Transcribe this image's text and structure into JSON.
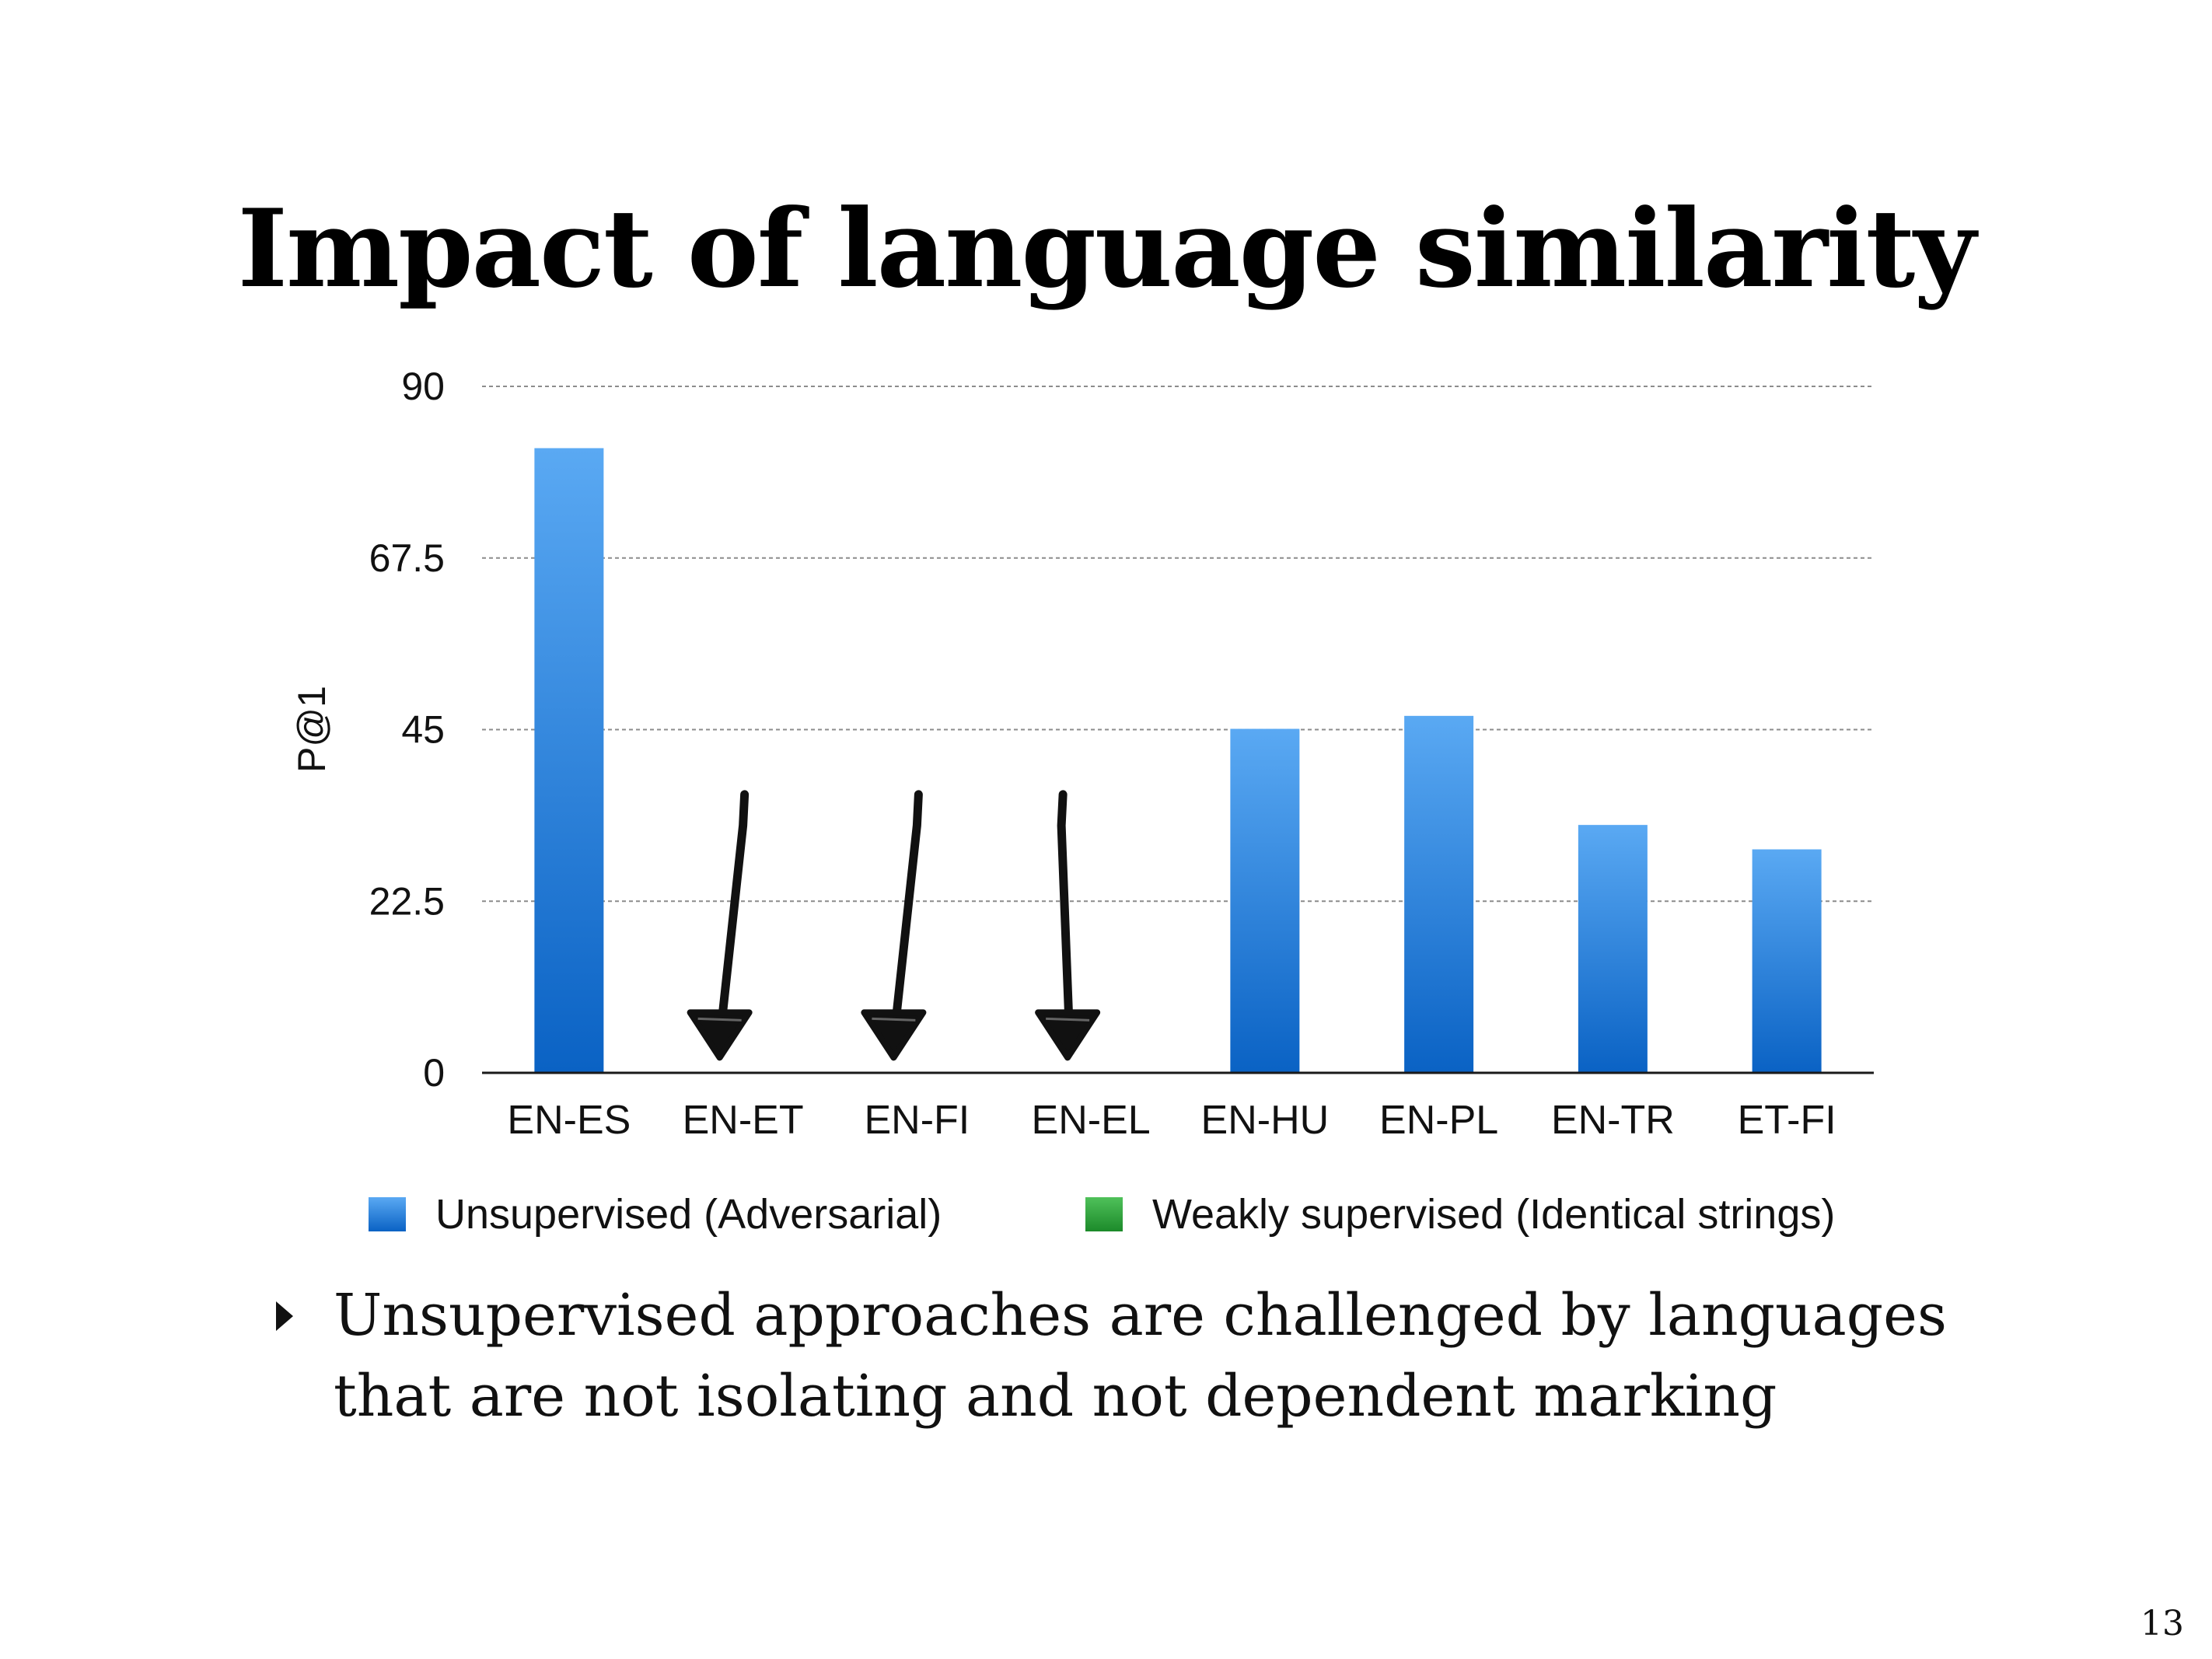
{
  "slide": {
    "title": "Impact of language similarity",
    "bullet": "Unsupervised approaches are challenged by languages that are not isolating and not dependent marking",
    "page_number": "13"
  },
  "colors": {
    "unsupervised": "#2b86e6",
    "unsupervised_dark": "#0a62c4",
    "unsupervised_light": "#5aa9f3",
    "weakly_supervised": "#2ea83a",
    "arrow": "#111111",
    "grid": "#8c8c8c"
  },
  "chart_data": {
    "type": "bar",
    "ylabel": "P@1",
    "xlabel": "",
    "ylim": [
      0,
      90
    ],
    "yticks": [
      0,
      22.5,
      45,
      67.5,
      90
    ],
    "ytick_labels": [
      "0",
      "22.5",
      "45",
      "67.5",
      "90"
    ],
    "grid": true,
    "legend_position": "bottom",
    "categories": [
      "EN-ES",
      "EN-ET",
      "EN-FI",
      "EN-EL",
      "EN-HU",
      "EN-PL",
      "EN-TR",
      "ET-FI"
    ],
    "series": [
      {
        "name": "Unsupervised (Adversarial)",
        "values": [
          81.9,
          null,
          null,
          null,
          45.1,
          46.8,
          32.5,
          29.3
        ]
      },
      {
        "name": "Weakly supervised (Identical strings)",
        "values": [
          null,
          null,
          null,
          null,
          null,
          null,
          null,
          null
        ]
      }
    ],
    "annotations": [
      {
        "type": "down-arrow",
        "category": "EN-ET"
      },
      {
        "type": "down-arrow",
        "category": "EN-FI"
      },
      {
        "type": "down-arrow",
        "category": "EN-EL"
      }
    ]
  }
}
